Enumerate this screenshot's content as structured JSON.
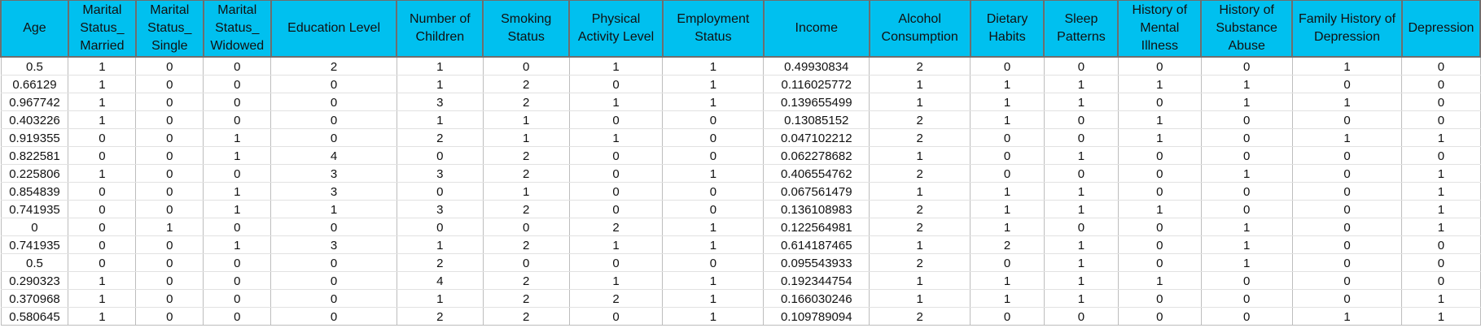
{
  "table": {
    "columns": [
      "Age",
      "Marital Status_ Married",
      "Marital Status_ Single",
      "Marital Status_ Widowed",
      "Education Level",
      "Number of Children",
      "Smoking Status",
      "Physical Activity Level",
      "Employment Status",
      "Income",
      "Alcohol Consumption",
      "Dietary Habits",
      "Sleep Patterns",
      "History of Mental Illness",
      "History of Substance Abuse",
      "Family History of Depression",
      "Depression"
    ],
    "rows": [
      [
        "0.5",
        "1",
        "0",
        "0",
        "2",
        "1",
        "0",
        "1",
        "1",
        "0.49930834",
        "2",
        "0",
        "0",
        "0",
        "0",
        "1",
        "0"
      ],
      [
        "0.66129",
        "1",
        "0",
        "0",
        "0",
        "1",
        "2",
        "0",
        "1",
        "0.116025772",
        "1",
        "1",
        "1",
        "1",
        "1",
        "0",
        "0"
      ],
      [
        "0.967742",
        "1",
        "0",
        "0",
        "0",
        "3",
        "2",
        "1",
        "1",
        "0.139655499",
        "1",
        "1",
        "1",
        "0",
        "1",
        "1",
        "0"
      ],
      [
        "0.403226",
        "1",
        "0",
        "0",
        "0",
        "1",
        "1",
        "0",
        "0",
        "0.13085152",
        "2",
        "1",
        "0",
        "1",
        "0",
        "0",
        "0"
      ],
      [
        "0.919355",
        "0",
        "0",
        "1",
        "0",
        "2",
        "1",
        "1",
        "0",
        "0.047102212",
        "2",
        "0",
        "0",
        "1",
        "0",
        "1",
        "1"
      ],
      [
        "0.822581",
        "0",
        "0",
        "1",
        "4",
        "0",
        "2",
        "0",
        "0",
        "0.062278682",
        "1",
        "0",
        "1",
        "0",
        "0",
        "0",
        "0"
      ],
      [
        "0.225806",
        "1",
        "0",
        "0",
        "3",
        "3",
        "2",
        "0",
        "1",
        "0.406554762",
        "2",
        "0",
        "0",
        "0",
        "1",
        "0",
        "1"
      ],
      [
        "0.854839",
        "0",
        "0",
        "1",
        "3",
        "0",
        "1",
        "0",
        "0",
        "0.067561479",
        "1",
        "1",
        "1",
        "0",
        "0",
        "0",
        "1"
      ],
      [
        "0.741935",
        "0",
        "0",
        "1",
        "1",
        "3",
        "2",
        "0",
        "0",
        "0.136108983",
        "2",
        "1",
        "1",
        "1",
        "0",
        "0",
        "1"
      ],
      [
        "0",
        "0",
        "1",
        "0",
        "0",
        "0",
        "0",
        "2",
        "1",
        "0.122564981",
        "2",
        "1",
        "0",
        "0",
        "1",
        "0",
        "1"
      ],
      [
        "0.741935",
        "0",
        "0",
        "1",
        "3",
        "1",
        "2",
        "1",
        "1",
        "0.614187465",
        "1",
        "2",
        "1",
        "0",
        "1",
        "0",
        "0"
      ],
      [
        "0.5",
        "0",
        "0",
        "0",
        "0",
        "2",
        "0",
        "0",
        "0",
        "0.095543933",
        "2",
        "0",
        "1",
        "0",
        "1",
        "0",
        "0"
      ],
      [
        "0.290323",
        "1",
        "0",
        "0",
        "0",
        "4",
        "2",
        "1",
        "1",
        "0.192344754",
        "1",
        "1",
        "1",
        "1",
        "0",
        "0",
        "0"
      ],
      [
        "0.370968",
        "1",
        "0",
        "0",
        "0",
        "1",
        "2",
        "2",
        "1",
        "0.166030246",
        "1",
        "1",
        "1",
        "0",
        "0",
        "0",
        "1"
      ],
      [
        "0.580645",
        "1",
        "0",
        "0",
        "0",
        "2",
        "2",
        "0",
        "1",
        "0.109789094",
        "2",
        "0",
        "0",
        "0",
        "0",
        "1",
        "1"
      ]
    ]
  },
  "colors": {
    "header_fill": "#00c0ef",
    "header_text": "#111111",
    "cell_text": "#111111",
    "gridline": "#bdbdbd"
  }
}
